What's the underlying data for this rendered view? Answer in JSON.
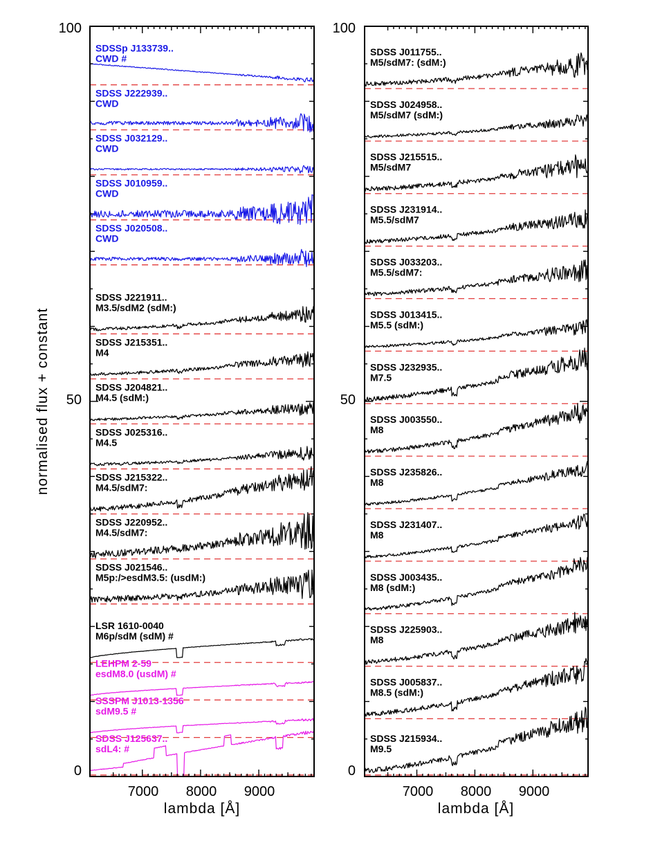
{
  "chart_data": [
    {
      "type": "line",
      "xlabel": "lambda [Å]",
      "ylabel": "normalised flux + constant",
      "xlim": [
        6100,
        9950
      ],
      "ylim": [
        0,
        100
      ],
      "xticks": [
        "7000",
        "8000",
        "9000"
      ],
      "yticks": [
        "0",
        "50",
        "100"
      ],
      "colors": {
        "blue": "#1a1ae6",
        "black": "#000000",
        "magenta": "#e619e6",
        "reference": "#e23b3b"
      },
      "series": [
        {
          "name": "SDSSp J133739..",
          "type": "CWD #",
          "color": "blue",
          "offset": 92.2,
          "amp": 2.2,
          "shape": "decline",
          "noise": 0.2
        },
        {
          "name": "SDSS J222939..",
          "type": "CWD",
          "color": "blue",
          "offset": 86.2,
          "amp": 0.6,
          "shape": "flat",
          "noise": 0.8
        },
        {
          "name": "SDSS J032129..",
          "type": "CWD",
          "color": "blue",
          "offset": 80.2,
          "amp": 0.3,
          "shape": "flat",
          "noise": 0.35
        },
        {
          "name": "SDSS J010959..",
          "type": "CWD",
          "color": "blue",
          "offset": 74.2,
          "amp": 0.4,
          "shape": "flat",
          "noise": 1.6
        },
        {
          "name": "SDSS J020508..",
          "type": "CWD",
          "color": "blue",
          "offset": 68.2,
          "amp": 0.4,
          "shape": "flat",
          "noise": 0.8
        },
        {
          "name": "SDSS J221911..",
          "type": "M3.5/sdM2 (sdM:)",
          "color": "black",
          "offset": 59.0,
          "amp": 2.0,
          "shape": "rise",
          "noise": 0.7
        },
        {
          "name": "SDSS J215351..",
          "type": "M4",
          "color": "black",
          "offset": 53.0,
          "amp": 2.0,
          "shape": "rise",
          "noise": 0.7
        },
        {
          "name": "SDSS J204821..",
          "type": "M4.5 (sdM:)",
          "color": "black",
          "offset": 47.0,
          "amp": 1.5,
          "shape": "rise",
          "noise": 0.6
        },
        {
          "name": "SDSS J025316..",
          "type": "M4.5",
          "color": "black",
          "offset": 41.0,
          "amp": 1.5,
          "shape": "rise",
          "noise": 0.6
        },
        {
          "name": "SDSS J215322..",
          "type": "M4.5/sdM7:",
          "color": "black",
          "offset": 35.0,
          "amp": 4.0,
          "shape": "rise",
          "noise": 1.1
        },
        {
          "name": "SDSS J220952..",
          "type": "M4.5/sdM7:",
          "color": "black",
          "offset": 29.0,
          "amp": 3.0,
          "shape": "rise",
          "noise": 1.6
        },
        {
          "name": "SDSS J021546..",
          "type": "M5p:/>esdM3.5: (usdM:)",
          "color": "black",
          "offset": 23.0,
          "amp": 2.0,
          "shape": "rise",
          "noise": 1.3
        },
        {
          "name": "LSR 1610-0040",
          "type": "M6p/sdM (sdM) #",
          "color": "black",
          "offset": 15.2,
          "amp": 2.5,
          "shape": "smooth",
          "noise": 0.1
        },
        {
          "name": "LEHPM 2-59",
          "type": "esdM8.0 (usdM) #",
          "color": "magenta",
          "offset": 10.2,
          "amp": 1.8,
          "shape": "smooth",
          "noise": 0.1
        },
        {
          "name": "SSSPM J1013-1356",
          "type": "sdM9.5 #",
          "color": "magenta",
          "offset": 5.2,
          "amp": 1.8,
          "shape": "smooth",
          "noise": 0.1
        },
        {
          "name": "SDSS J125637..",
          "type": "sdL4: #",
          "color": "magenta",
          "offset": 0.2,
          "amp": 5.2,
          "shape": "ldwarf",
          "noise": 0.15
        }
      ]
    },
    {
      "type": "line",
      "xlabel": "lambda [Å]",
      "ylabel": "",
      "xlim": [
        6100,
        9950
      ],
      "ylim": [
        0,
        100
      ],
      "xticks": [
        "7000",
        "8000",
        "9000"
      ],
      "yticks": [
        "0",
        "50",
        "100"
      ],
      "colors": {
        "black": "#000000",
        "reference": "#e23b3b"
      },
      "series": [
        {
          "name": "SDSS J011755..",
          "type": "M5/sdM7: (sdM:)",
          "color": "black",
          "offset": 91.7,
          "amp": 2.5,
          "shape": "rise",
          "noise": 1.0
        },
        {
          "name": "SDSS J024958..",
          "type": "M5/sdM7 (sdM:)",
          "color": "black",
          "offset": 84.7,
          "amp": 2.0,
          "shape": "rise",
          "noise": 0.6
        },
        {
          "name": "SDSS J215515..",
          "type": "M5/sdM7",
          "color": "black",
          "offset": 77.7,
          "amp": 3.0,
          "shape": "rise",
          "noise": 1.0
        },
        {
          "name": "SDSS J231914..",
          "type": "M5.5/sdM7",
          "color": "black",
          "offset": 70.7,
          "amp": 3.0,
          "shape": "rise",
          "noise": 0.9
        },
        {
          "name": "SDSS J033203..",
          "type": "M5.5/sdM7:",
          "color": "black",
          "offset": 63.7,
          "amp": 3.0,
          "shape": "rise",
          "noise": 0.9
        },
        {
          "name": "SDSS J013415..",
          "type": "M5.5 (sdM:)",
          "color": "black",
          "offset": 56.7,
          "amp": 2.5,
          "shape": "rise",
          "noise": 0.6
        },
        {
          "name": "SDSS J232935..",
          "type": "M7.5",
          "color": "black",
          "offset": 49.7,
          "amp": 5.0,
          "shape": "rise",
          "noise": 1.0
        },
        {
          "name": "SDSS J003550..",
          "type": "M8",
          "color": "black",
          "offset": 42.7,
          "amp": 5.0,
          "shape": "rise",
          "noise": 0.9
        },
        {
          "name": "SDSS J235826..",
          "type": "M8",
          "color": "black",
          "offset": 35.7,
          "amp": 4.5,
          "shape": "rise",
          "noise": 0.6
        },
        {
          "name": "SDSS J231407..",
          "type": "M8",
          "color": "black",
          "offset": 28.7,
          "amp": 4.5,
          "shape": "rise",
          "noise": 0.6
        },
        {
          "name": "SDSS J003435..",
          "type": "M8 (sdM:)",
          "color": "black",
          "offset": 21.7,
          "amp": 5.5,
          "shape": "rise",
          "noise": 0.8
        },
        {
          "name": "SDSS J225903..",
          "type": "M8",
          "color": "black",
          "offset": 14.7,
          "amp": 5.0,
          "shape": "rise",
          "noise": 1.0
        },
        {
          "name": "SDSS J005837..",
          "type": "M8.5 (sdM:)",
          "color": "black",
          "offset": 7.7,
          "amp": 5.5,
          "shape": "rise",
          "noise": 1.0
        },
        {
          "name": "SDSS J215934..",
          "type": "M9.5",
          "color": "black",
          "offset": 0.2,
          "amp": 6.5,
          "shape": "rise",
          "noise": 1.1
        }
      ]
    }
  ]
}
